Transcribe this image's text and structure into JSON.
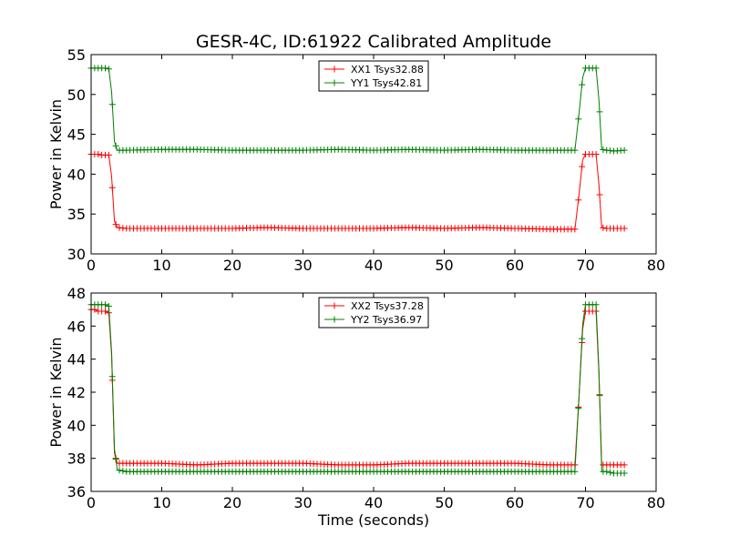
{
  "chart_data": [
    {
      "type": "line",
      "title": "GESR-4C, ID:61922 Calibrated Amplitude",
      "xlabel": "",
      "ylabel": "Power in Kelvin",
      "xlim": [
        0,
        80
      ],
      "ylim": [
        30,
        55
      ],
      "xticks": [
        "0",
        "10",
        "20",
        "30",
        "40",
        "50",
        "60",
        "70",
        "80"
      ],
      "yticks": [
        "30",
        "35",
        "40",
        "45",
        "50",
        "55"
      ],
      "legend_position": "top-center",
      "series": [
        {
          "name": "XX1 Tsys32.88",
          "color": "#ff0000",
          "x": [
            0,
            0.5,
            1,
            1.5,
            2,
            2.5,
            2.9,
            3.3,
            3.7,
            5,
            10,
            15,
            20,
            25,
            30,
            35,
            40,
            45,
            50,
            55,
            60,
            65,
            68.5,
            69.1,
            69.6,
            70,
            70.5,
            71,
            71.5,
            71.9,
            72.3,
            73,
            74,
            75.5
          ],
          "y": [
            42.5,
            42.5,
            42.5,
            42.4,
            42.4,
            42.4,
            39.7,
            34.1,
            33.3,
            33.2,
            33.2,
            33.2,
            33.2,
            33.3,
            33.2,
            33.2,
            33.2,
            33.3,
            33.2,
            33.3,
            33.2,
            33.1,
            33.1,
            37.5,
            41.8,
            42.5,
            42.5,
            42.5,
            42.5,
            38.8,
            33.3,
            33.2,
            33.2,
            33.2
          ]
        },
        {
          "name": "YY1 Tsys42.81",
          "color": "#008000",
          "x": [
            0,
            0.5,
            1,
            1.5,
            2,
            2.5,
            2.9,
            3.3,
            3.7,
            5,
            10,
            15,
            20,
            25,
            30,
            35,
            40,
            45,
            50,
            55,
            60,
            65,
            68.5,
            69.1,
            69.6,
            70,
            70.5,
            71,
            71.5,
            71.9,
            72.3,
            73,
            74,
            75.5
          ],
          "y": [
            53.3,
            53.3,
            53.3,
            53.3,
            53.3,
            53.2,
            50.3,
            44.1,
            43.0,
            43.0,
            43.1,
            43.1,
            43.0,
            43.0,
            43.0,
            43.1,
            43.0,
            43.1,
            43.0,
            43.1,
            43.0,
            43.0,
            43.0,
            47.7,
            52.1,
            53.3,
            53.3,
            53.3,
            53.3,
            49.4,
            43.1,
            43.0,
            42.9,
            43.0
          ]
        }
      ]
    },
    {
      "type": "line",
      "title": "",
      "xlabel": "Time (seconds)",
      "ylabel": "Power in Kelvin",
      "xlim": [
        0,
        80
      ],
      "ylim": [
        36,
        48
      ],
      "xticks": [
        "0",
        "10",
        "20",
        "30",
        "40",
        "50",
        "60",
        "70",
        "80"
      ],
      "yticks": [
        "36",
        "38",
        "40",
        "42",
        "44",
        "46",
        "48"
      ],
      "legend_position": "top-center",
      "series": [
        {
          "name": "XX2 Tsys37.28",
          "color": "#ff0000",
          "x": [
            0,
            0.5,
            1,
            1.5,
            2,
            2.5,
            2.9,
            3.3,
            3.7,
            5,
            10,
            15,
            20,
            25,
            30,
            35,
            40,
            45,
            50,
            55,
            60,
            65,
            68.5,
            69.1,
            69.6,
            70,
            70.5,
            71,
            71.5,
            71.9,
            72.3,
            73,
            74,
            75.5
          ],
          "y": [
            47.0,
            47.0,
            46.9,
            46.9,
            46.9,
            46.8,
            44.2,
            38.3,
            37.7,
            37.7,
            37.7,
            37.6,
            37.7,
            37.7,
            37.7,
            37.6,
            37.6,
            37.7,
            37.7,
            37.7,
            37.7,
            37.6,
            37.6,
            41.8,
            45.8,
            46.9,
            46.9,
            46.9,
            46.9,
            43.2,
            37.6,
            37.6,
            37.6,
            37.6
          ]
        },
        {
          "name": "YY2 Tsys36.97",
          "color": "#008000",
          "x": [
            0,
            0.5,
            1,
            1.5,
            2,
            2.5,
            2.9,
            3.3,
            3.7,
            5,
            10,
            15,
            20,
            25,
            30,
            35,
            40,
            45,
            50,
            55,
            60,
            65,
            68.5,
            69.1,
            69.6,
            70,
            70.5,
            71,
            71.5,
            71.9,
            72.3,
            73,
            74,
            75.5
          ],
          "y": [
            47.3,
            47.3,
            47.3,
            47.3,
            47.3,
            47.2,
            44.4,
            38.6,
            37.3,
            37.2,
            37.2,
            37.2,
            37.2,
            37.2,
            37.2,
            37.2,
            37.2,
            37.2,
            37.2,
            37.2,
            37.2,
            37.2,
            37.2,
            41.8,
            46.1,
            47.3,
            47.3,
            47.3,
            47.3,
            43.4,
            37.2,
            37.2,
            37.1,
            37.1
          ]
        }
      ]
    }
  ]
}
